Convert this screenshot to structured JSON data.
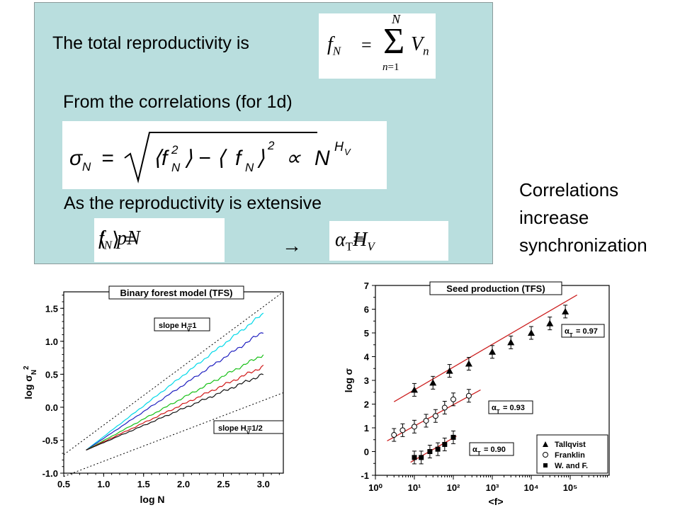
{
  "panel": {
    "line1": "The total reproductivity is",
    "line2": "From the correlations (for 1d)",
    "line3": "As the reproductivity is extensive",
    "arrow": "→"
  },
  "formulas": {
    "sum": "f_N = Σ_{n=1}^{N} V_n",
    "sigma": "σ_N = √(⟨f_N²⟩ − ⟨f_N⟩²) ∝ N^{H_V}",
    "mean": "⟨f_N⟩ = pN",
    "alpha": "α_T = H_V"
  },
  "side_note": [
    "Correlations",
    "increase",
    "synchronization"
  ],
  "chart_data": [
    {
      "type": "line",
      "title": "Binary forest model (TFS)",
      "xlabel": "log N",
      "ylabel": "log σ_N²",
      "xlim": [
        0.5,
        3.25
      ],
      "ylim": [
        -1.0,
        1.75
      ],
      "xticks": [
        "0.5",
        "1.0",
        "1.5",
        "2.0",
        "2.5",
        "3.0"
      ],
      "yticks": [
        "-1.0",
        "-0.5",
        "0.0",
        "0.5",
        "1.0",
        "1.5"
      ],
      "annotations": [
        "slope H_V=1",
        "slope H_V=1/2"
      ],
      "series": [
        {
          "color": "#00d8e8",
          "x": [
            0.78,
            3.0
          ],
          "y": [
            -0.65,
            1.42
          ]
        },
        {
          "color": "#2020c0",
          "x": [
            0.78,
            3.0
          ],
          "y": [
            -0.65,
            1.15
          ]
        },
        {
          "color": "#18c018",
          "x": [
            0.78,
            3.0
          ],
          "y": [
            -0.65,
            0.8
          ]
        },
        {
          "color": "#d01818",
          "x": [
            0.78,
            3.0
          ],
          "y": [
            -0.65,
            0.62
          ]
        },
        {
          "color": "#111111",
          "x": [
            0.78,
            3.0
          ],
          "y": [
            -0.65,
            0.5
          ]
        }
      ],
      "reference_lines": [
        {
          "style": "dotted",
          "x": [
            0.5,
            3.25
          ],
          "y": [
            -0.72,
            1.75
          ]
        },
        {
          "style": "dotted",
          "x": [
            0.5,
            3.25
          ],
          "y": [
            -1.05,
            0.22
          ]
        }
      ]
    },
    {
      "type": "scatter",
      "title": "Seed production (TFS)",
      "xlabel": "<f>",
      "ylabel": "log σ",
      "xscale": "log",
      "xlim": [
        1,
        1000000
      ],
      "ylim": [
        -1,
        7
      ],
      "xticks": [
        "10⁰",
        "10¹",
        "10²",
        "10³",
        "10⁴",
        "10⁵"
      ],
      "yticks": [
        "-1",
        "0",
        "1",
        "2",
        "3",
        "4",
        "5",
        "6",
        "7"
      ],
      "legend": [
        "Tallqvist",
        "Franklin",
        "W. and F."
      ],
      "legend_position": "bottom-right",
      "series": [
        {
          "name": "Tallqvist",
          "marker": "triangle",
          "x": [
            10,
            30,
            80,
            250,
            1000,
            3000,
            10000,
            30000,
            75000
          ],
          "y": [
            2.6,
            2.9,
            3.4,
            3.7,
            4.2,
            4.6,
            5.0,
            5.4,
            5.9
          ]
        },
        {
          "name": "Franklin",
          "marker": "circle",
          "x": [
            3,
            5,
            10,
            20,
            35,
            60,
            100,
            250
          ],
          "y": [
            0.7,
            0.9,
            1.05,
            1.3,
            1.5,
            1.85,
            2.2,
            2.35
          ]
        },
        {
          "name": "W. and F.",
          "marker": "square",
          "x": [
            10,
            15,
            25,
            40,
            60,
            100
          ],
          "y": [
            -0.25,
            -0.25,
            0.0,
            0.1,
            0.3,
            0.6
          ]
        }
      ],
      "fits": [
        {
          "label": "α_T = 0.97",
          "x": [
            3,
            150000
          ],
          "y": [
            2.1,
            6.6
          ]
        },
        {
          "label": "α_T = 0.93",
          "x": [
            2,
            500
          ],
          "y": [
            0.45,
            2.6
          ]
        },
        {
          "label": "α_T = 0.90",
          "x": [
            8,
            120
          ],
          "y": [
            -0.45,
            0.65
          ]
        }
      ]
    }
  ]
}
